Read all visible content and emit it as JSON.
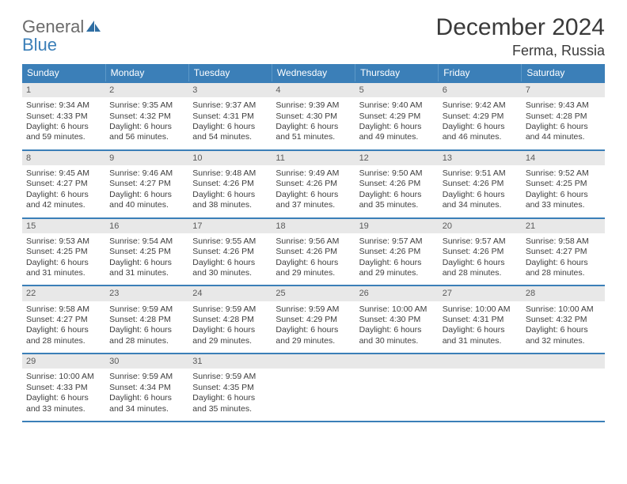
{
  "logo": {
    "word1": "General",
    "word2": "Blue"
  },
  "title": {
    "month": "December 2024",
    "location": "Ferma, Russia"
  },
  "colors": {
    "header_bg": "#3b7fb8",
    "header_text": "#ffffff",
    "row_divider": "#3b7fb8",
    "daynum_bg": "#e8e8e8",
    "body_text": "#3e3e3e",
    "logo_gray": "#6b6b6b",
    "logo_blue": "#3b7fb8"
  },
  "weekdays": [
    "Sunday",
    "Monday",
    "Tuesday",
    "Wednesday",
    "Thursday",
    "Friday",
    "Saturday"
  ],
  "days": [
    {
      "n": "1",
      "sr": "9:34 AM",
      "ss": "4:33 PM",
      "dl": "6 hours and 59 minutes."
    },
    {
      "n": "2",
      "sr": "9:35 AM",
      "ss": "4:32 PM",
      "dl": "6 hours and 56 minutes."
    },
    {
      "n": "3",
      "sr": "9:37 AM",
      "ss": "4:31 PM",
      "dl": "6 hours and 54 minutes."
    },
    {
      "n": "4",
      "sr": "9:39 AM",
      "ss": "4:30 PM",
      "dl": "6 hours and 51 minutes."
    },
    {
      "n": "5",
      "sr": "9:40 AM",
      "ss": "4:29 PM",
      "dl": "6 hours and 49 minutes."
    },
    {
      "n": "6",
      "sr": "9:42 AM",
      "ss": "4:29 PM",
      "dl": "6 hours and 46 minutes."
    },
    {
      "n": "7",
      "sr": "9:43 AM",
      "ss": "4:28 PM",
      "dl": "6 hours and 44 minutes."
    },
    {
      "n": "8",
      "sr": "9:45 AM",
      "ss": "4:27 PM",
      "dl": "6 hours and 42 minutes."
    },
    {
      "n": "9",
      "sr": "9:46 AM",
      "ss": "4:27 PM",
      "dl": "6 hours and 40 minutes."
    },
    {
      "n": "10",
      "sr": "9:48 AM",
      "ss": "4:26 PM",
      "dl": "6 hours and 38 minutes."
    },
    {
      "n": "11",
      "sr": "9:49 AM",
      "ss": "4:26 PM",
      "dl": "6 hours and 37 minutes."
    },
    {
      "n": "12",
      "sr": "9:50 AM",
      "ss": "4:26 PM",
      "dl": "6 hours and 35 minutes."
    },
    {
      "n": "13",
      "sr": "9:51 AM",
      "ss": "4:26 PM",
      "dl": "6 hours and 34 minutes."
    },
    {
      "n": "14",
      "sr": "9:52 AM",
      "ss": "4:25 PM",
      "dl": "6 hours and 33 minutes."
    },
    {
      "n": "15",
      "sr": "9:53 AM",
      "ss": "4:25 PM",
      "dl": "6 hours and 31 minutes."
    },
    {
      "n": "16",
      "sr": "9:54 AM",
      "ss": "4:25 PM",
      "dl": "6 hours and 31 minutes."
    },
    {
      "n": "17",
      "sr": "9:55 AM",
      "ss": "4:26 PM",
      "dl": "6 hours and 30 minutes."
    },
    {
      "n": "18",
      "sr": "9:56 AM",
      "ss": "4:26 PM",
      "dl": "6 hours and 29 minutes."
    },
    {
      "n": "19",
      "sr": "9:57 AM",
      "ss": "4:26 PM",
      "dl": "6 hours and 29 minutes."
    },
    {
      "n": "20",
      "sr": "9:57 AM",
      "ss": "4:26 PM",
      "dl": "6 hours and 28 minutes."
    },
    {
      "n": "21",
      "sr": "9:58 AM",
      "ss": "4:27 PM",
      "dl": "6 hours and 28 minutes."
    },
    {
      "n": "22",
      "sr": "9:58 AM",
      "ss": "4:27 PM",
      "dl": "6 hours and 28 minutes."
    },
    {
      "n": "23",
      "sr": "9:59 AM",
      "ss": "4:28 PM",
      "dl": "6 hours and 28 minutes."
    },
    {
      "n": "24",
      "sr": "9:59 AM",
      "ss": "4:28 PM",
      "dl": "6 hours and 29 minutes."
    },
    {
      "n": "25",
      "sr": "9:59 AM",
      "ss": "4:29 PM",
      "dl": "6 hours and 29 minutes."
    },
    {
      "n": "26",
      "sr": "10:00 AM",
      "ss": "4:30 PM",
      "dl": "6 hours and 30 minutes."
    },
    {
      "n": "27",
      "sr": "10:00 AM",
      "ss": "4:31 PM",
      "dl": "6 hours and 31 minutes."
    },
    {
      "n": "28",
      "sr": "10:00 AM",
      "ss": "4:32 PM",
      "dl": "6 hours and 32 minutes."
    },
    {
      "n": "29",
      "sr": "10:00 AM",
      "ss": "4:33 PM",
      "dl": "6 hours and 33 minutes."
    },
    {
      "n": "30",
      "sr": "9:59 AM",
      "ss": "4:34 PM",
      "dl": "6 hours and 34 minutes."
    },
    {
      "n": "31",
      "sr": "9:59 AM",
      "ss": "4:35 PM",
      "dl": "6 hours and 35 minutes."
    }
  ],
  "labels": {
    "sunrise": "Sunrise: ",
    "sunset": "Sunset: ",
    "daylight": "Daylight: "
  },
  "layout": {
    "first_weekday_offset": 0,
    "rows": 5,
    "cols": 7
  }
}
